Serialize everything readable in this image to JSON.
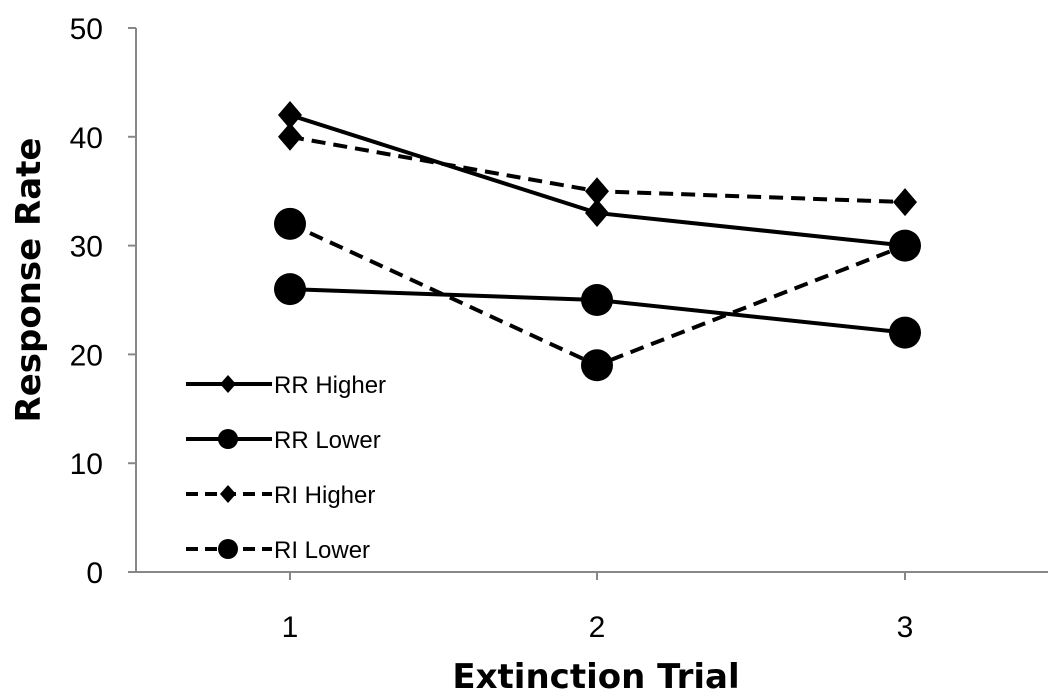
{
  "chart_data": {
    "type": "line",
    "title": "",
    "xlabel": "Extinction Trial",
    "ylabel": "Response Rate",
    "categories": [
      "1",
      "2",
      "3"
    ],
    "ylim": [
      0,
      50
    ],
    "yticks": [
      0,
      10,
      20,
      30,
      40,
      50
    ],
    "grid": false,
    "legend_position": "bottom-left",
    "series": [
      {
        "name": "RR Higher",
        "values": [
          42,
          33,
          30
        ],
        "line_style": "solid",
        "marker": "diamond",
        "color": "#000000"
      },
      {
        "name": "RR Lower",
        "values": [
          26,
          25,
          22
        ],
        "line_style": "solid",
        "marker": "circle",
        "color": "#000000"
      },
      {
        "name": "RI Higher",
        "values": [
          40,
          35,
          34
        ],
        "line_style": "dashed",
        "marker": "diamond",
        "color": "#000000"
      },
      {
        "name": "RI Lower",
        "values": [
          32,
          19,
          30
        ],
        "line_style": "dashed",
        "marker": "circle",
        "color": "#000000"
      }
    ]
  }
}
